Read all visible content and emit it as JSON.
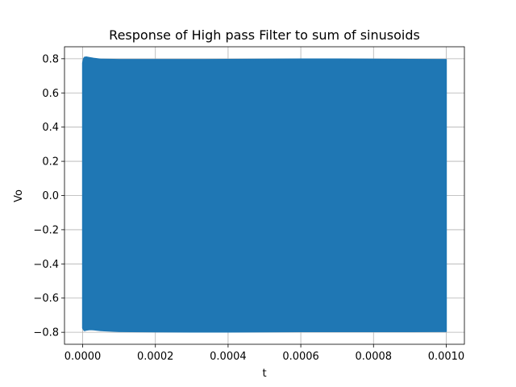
{
  "chart_data": {
    "type": "line",
    "title": "Response of High pass Filter to sum of sinusoids",
    "xlabel": "t",
    "ylabel": "Vo",
    "xlim": [
      -5e-05,
      0.00105
    ],
    "ylim": [
      -0.87,
      0.87
    ],
    "grid": true,
    "x_ticks": [
      0.0,
      0.0002,
      0.0004,
      0.0006,
      0.0008,
      0.001
    ],
    "x_tick_labels": [
      "0.0000",
      "0.0002",
      "0.0004",
      "0.0006",
      "0.0008",
      "0.0010"
    ],
    "y_ticks": [
      -0.8,
      -0.6,
      -0.4,
      -0.2,
      0.0,
      0.2,
      0.4,
      0.6,
      0.8
    ],
    "y_tick_labels": [
      "−0.8",
      "−0.6",
      "−0.4",
      "−0.2",
      "0.0",
      "0.2",
      "0.4",
      "0.6",
      "0.8"
    ],
    "series": [
      {
        "color": "#1f77b4",
        "x": [
          0.0,
          2.5e-06,
          5e-06,
          1e-05,
          2e-05,
          3e-05,
          5e-05,
          0.0001,
          0.0002,
          0.0003,
          0.0004,
          0.0005,
          0.0006,
          0.0007,
          0.0008,
          0.0009,
          0.001
        ],
        "upper": [
          0.775,
          0.8,
          0.808,
          0.81,
          0.806,
          0.802,
          0.797,
          0.795,
          0.795,
          0.795,
          0.796,
          0.797,
          0.798,
          0.798,
          0.797,
          0.796,
          0.795
        ],
        "lower": [
          -0.775,
          -0.785,
          -0.79,
          -0.787,
          -0.784,
          -0.785,
          -0.79,
          -0.795,
          -0.797,
          -0.798,
          -0.798,
          -0.797,
          -0.796,
          -0.796,
          -0.796,
          -0.796,
          -0.795
        ]
      }
    ]
  }
}
